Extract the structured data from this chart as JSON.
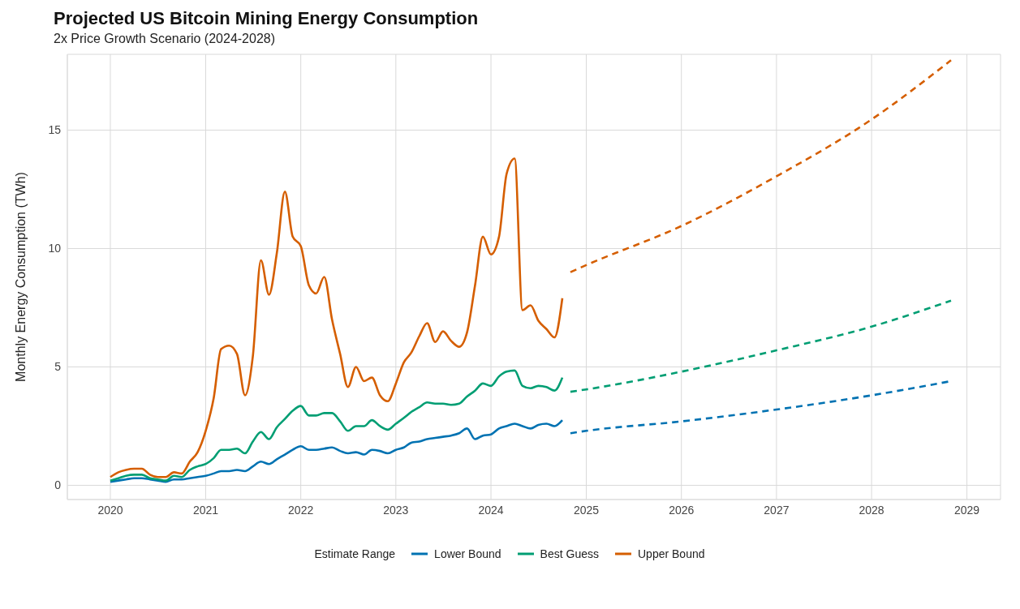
{
  "chart_data": {
    "type": "line",
    "title": "Projected US Bitcoin Mining Energy Consumption",
    "subtitle": "2x Price Growth Scenario (2024-2028)",
    "ylabel": "Monthly Energy Consumption (TWh)",
    "legend_title": "Estimate Range",
    "legend": "bottom",
    "grid": true,
    "marker": "none",
    "xlim": [
      "2019-07-20",
      "2029-05-10"
    ],
    "xticks": [
      "2020",
      "2021",
      "2022",
      "2023",
      "2024",
      "2025",
      "2026",
      "2027",
      "2028",
      "2029"
    ],
    "ylim": [
      -0.6,
      18.2
    ],
    "yticks": [
      0,
      5,
      10,
      15
    ],
    "x": [
      "2020-01",
      "2020-02",
      "2020-03",
      "2020-04",
      "2020-05",
      "2020-06",
      "2020-07",
      "2020-08",
      "2020-09",
      "2020-10",
      "2020-11",
      "2020-12",
      "2021-01",
      "2021-02",
      "2021-03",
      "2021-04",
      "2021-05",
      "2021-06",
      "2021-07",
      "2021-08",
      "2021-09",
      "2021-10",
      "2021-11",
      "2021-12",
      "2022-01",
      "2022-02",
      "2022-03",
      "2022-04",
      "2022-05",
      "2022-06",
      "2022-07",
      "2022-08",
      "2022-09",
      "2022-10",
      "2022-11",
      "2022-12",
      "2023-01",
      "2023-02",
      "2023-03",
      "2023-04",
      "2023-05",
      "2023-06",
      "2023-07",
      "2023-08",
      "2023-09",
      "2023-10",
      "2023-11",
      "2023-12",
      "2024-01",
      "2024-02",
      "2024-03",
      "2024-04",
      "2024-05",
      "2024-06",
      "2024-07",
      "2024-08",
      "2024-09",
      "2024-10"
    ],
    "series": [
      {
        "name": "Lower Bound",
        "color": "#0072b2",
        "line_style": "solid",
        "values": [
          0.15,
          0.2,
          0.25,
          0.3,
          0.3,
          0.25,
          0.2,
          0.15,
          0.25,
          0.25,
          0.3,
          0.35,
          0.4,
          0.5,
          0.6,
          0.6,
          0.65,
          0.6,
          0.8,
          1.0,
          0.9,
          1.1,
          1.3,
          1.5,
          1.65,
          1.5,
          1.5,
          1.55,
          1.6,
          1.45,
          1.35,
          1.4,
          1.3,
          1.5,
          1.45,
          1.35,
          1.5,
          1.6,
          1.8,
          1.85,
          1.95,
          2.0,
          2.05,
          2.1,
          2.2,
          2.4,
          1.95,
          2.1,
          2.15,
          2.4,
          2.5,
          2.6,
          2.5,
          2.4,
          2.55,
          2.6,
          2.5,
          2.75
        ]
      },
      {
        "name": "Best Guess",
        "color": "#009e73",
        "line_style": "solid",
        "values": [
          0.2,
          0.3,
          0.4,
          0.45,
          0.45,
          0.3,
          0.25,
          0.2,
          0.4,
          0.35,
          0.65,
          0.8,
          0.9,
          1.15,
          1.5,
          1.5,
          1.55,
          1.35,
          1.85,
          2.25,
          1.95,
          2.45,
          2.8,
          3.15,
          3.35,
          2.95,
          2.95,
          3.05,
          3.05,
          2.7,
          2.3,
          2.5,
          2.5,
          2.75,
          2.5,
          2.35,
          2.6,
          2.85,
          3.1,
          3.3,
          3.5,
          3.45,
          3.45,
          3.4,
          3.45,
          3.75,
          4.0,
          4.3,
          4.2,
          4.6,
          4.8,
          4.85,
          4.2,
          4.1,
          4.2,
          4.15,
          4.0,
          4.55
        ]
      },
      {
        "name": "Upper Bound",
        "color": "#d55e00",
        "line_style": "solid",
        "values": [
          0.35,
          0.55,
          0.65,
          0.7,
          0.7,
          0.45,
          0.35,
          0.35,
          0.55,
          0.5,
          1.0,
          1.4,
          2.3,
          3.7,
          5.75,
          5.9,
          5.55,
          3.8,
          5.45,
          9.5,
          8.05,
          9.8,
          12.4,
          10.5,
          10.1,
          8.45,
          8.1,
          8.8,
          7.0,
          5.55,
          4.15,
          5.0,
          4.4,
          4.55,
          3.8,
          3.55,
          4.3,
          5.2,
          5.6,
          6.3,
          6.85,
          6.05,
          6.5,
          6.1,
          5.85,
          6.45,
          8.45,
          10.5,
          9.75,
          10.5,
          13.15,
          13.8,
          7.4,
          7.6,
          6.95,
          6.6,
          6.25,
          7.9
        ]
      },
      {
        "color": "#0072b2",
        "line_style": "dashed",
        "x": [
          "2024-11",
          "2025-01",
          "2026-01",
          "2027-01",
          "2028-01",
          "2028-11"
        ],
        "values": [
          2.2,
          2.3,
          2.7,
          3.2,
          3.8,
          4.4
        ]
      },
      {
        "color": "#009e73",
        "line_style": "dashed",
        "x": [
          "2024-11",
          "2025-01",
          "2026-01",
          "2027-01",
          "2028-01",
          "2028-11"
        ],
        "values": [
          3.95,
          4.05,
          4.8,
          5.7,
          6.7,
          7.8
        ]
      },
      {
        "color": "#d55e00",
        "line_style": "dashed",
        "x": [
          "2024-11",
          "2025-01",
          "2026-01",
          "2027-01",
          "2028-01",
          "2028-11"
        ],
        "values": [
          9.0,
          9.3,
          10.95,
          13.05,
          15.45,
          17.95
        ]
      }
    ]
  }
}
